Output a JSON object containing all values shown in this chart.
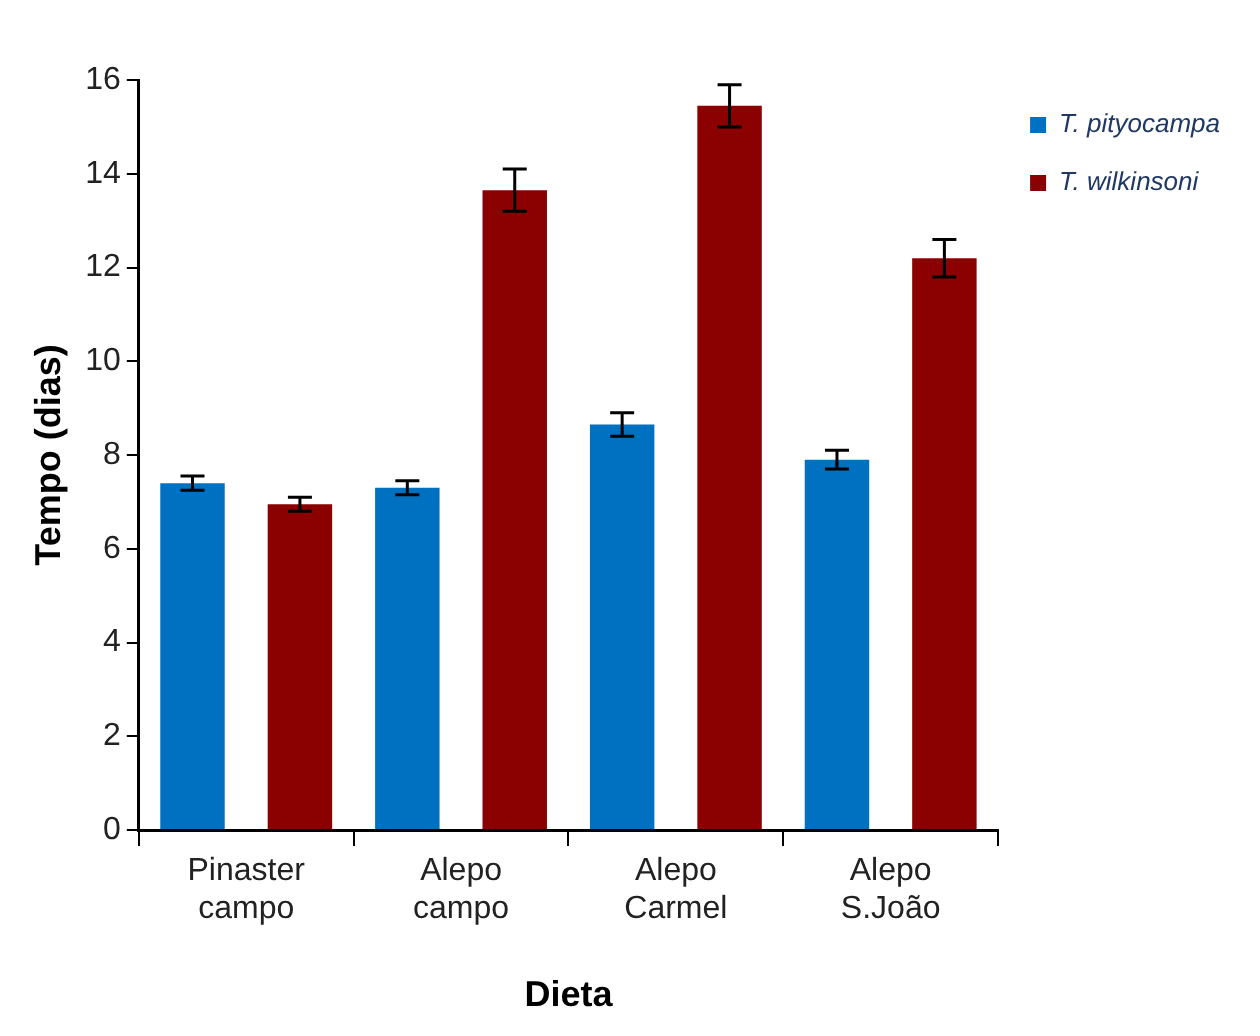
{
  "chart_data": {
    "type": "bar",
    "xlabel": "Dieta",
    "ylabel": "Tempo (dias)",
    "categories": [
      "Pinaster campo",
      "Alepo campo",
      "Alepo Carmel",
      "Alepo S.João"
    ],
    "series": [
      {
        "name": "T. pityocampa",
        "color": "#0070c0",
        "values": [
          7.4,
          7.3,
          8.65,
          7.9
        ],
        "errors": [
          0.15,
          0.15,
          0.25,
          0.2
        ]
      },
      {
        "name": "T. wilkinsoni",
        "color": "#8b0000",
        "values": [
          6.95,
          13.65,
          15.45,
          12.2
        ],
        "errors": [
          0.15,
          0.45,
          0.45,
          0.4
        ]
      }
    ],
    "ylim": [
      0,
      16
    ],
    "yticks": [
      0,
      2,
      4,
      6,
      8,
      10,
      12,
      14,
      16
    ],
    "grid": false,
    "legend": "top right"
  }
}
